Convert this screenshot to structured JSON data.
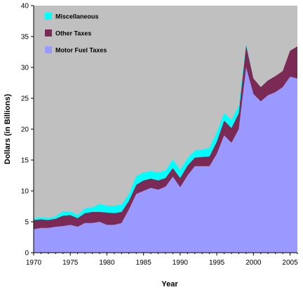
{
  "chart_data": {
    "type": "area",
    "stacked": true,
    "xlabel": "Year",
    "ylabel": "Dollars (in Billions)",
    "xlim": [
      1970,
      2006
    ],
    "ylim": [
      0,
      40
    ],
    "x_ticks": [
      1970,
      1975,
      1980,
      1985,
      1990,
      1995,
      2000,
      2005
    ],
    "y_ticks": [
      0,
      5,
      10,
      15,
      20,
      25,
      30,
      35,
      40
    ],
    "grid": false,
    "legend_position": "top-left",
    "plot_background": "#c0c0c0",
    "x": [
      1970,
      1971,
      1972,
      1973,
      1974,
      1975,
      1976,
      1977,
      1978,
      1979,
      1980,
      1981,
      1982,
      1983,
      1984,
      1985,
      1986,
      1987,
      1988,
      1989,
      1990,
      1991,
      1992,
      1993,
      1994,
      1995,
      1996,
      1997,
      1998,
      1999,
      2000,
      2001,
      2002,
      2003,
      2004,
      2005,
      2006
    ],
    "series": [
      {
        "name": "Motor Fuel Taxes",
        "color": "#9999ff",
        "values": [
          3.8,
          4.0,
          4.0,
          4.2,
          4.3,
          4.5,
          4.2,
          4.8,
          4.8,
          5.0,
          4.5,
          4.5,
          4.8,
          7.0,
          9.5,
          10.0,
          10.5,
          10.2,
          10.7,
          12.3,
          10.6,
          12.5,
          14.0,
          14.0,
          14.0,
          16.0,
          19.0,
          17.8,
          20.0,
          30.0,
          25.7,
          24.5,
          25.5,
          26.0,
          26.8,
          28.5,
          28.2
        ]
      },
      {
        "name": "Other Taxes",
        "color": "#7b2a55",
        "values": [
          1.5,
          1.4,
          1.3,
          1.3,
          1.7,
          1.6,
          1.4,
          1.6,
          1.8,
          1.6,
          2.0,
          1.9,
          1.8,
          1.4,
          1.5,
          1.7,
          1.5,
          1.5,
          1.4,
          1.4,
          1.5,
          1.6,
          1.4,
          1.5,
          1.6,
          2.0,
          2.4,
          2.4,
          2.6,
          3.6,
          2.5,
          2.3,
          2.4,
          2.6,
          2.6,
          4.2,
          5.2
        ]
      },
      {
        "name": "Miscellaneous",
        "color": "#00ffff",
        "values": [
          0.3,
          0.3,
          0.3,
          0.4,
          0.7,
          0.6,
          0.5,
          0.8,
          0.7,
          1.3,
          1.1,
          1.2,
          1.2,
          1.1,
          1.4,
          1.3,
          1.2,
          1.3,
          1.2,
          1.4,
          1.3,
          1.2,
          1.1,
          1.2,
          1.4,
          1.5,
          1.2,
          1.3,
          1.2,
          0.2,
          0.0,
          0.0,
          0.0,
          0.0,
          0.0,
          0.0,
          0.0
        ]
      }
    ],
    "legend_entries": [
      "Miscellaneous",
      "Other Taxes",
      "Motor Fuel Taxes"
    ]
  }
}
